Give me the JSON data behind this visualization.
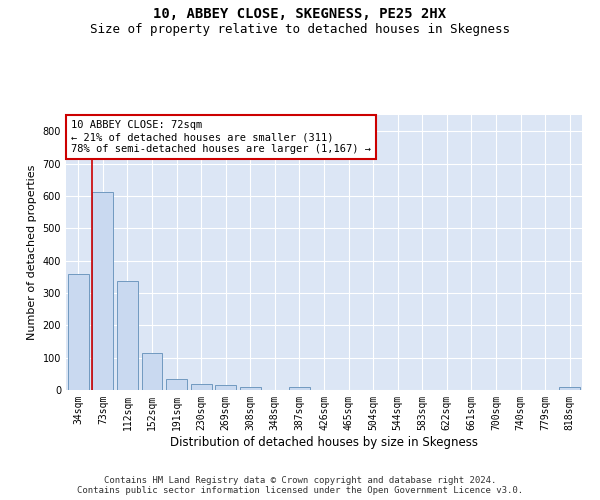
{
  "title": "10, ABBEY CLOSE, SKEGNESS, PE25 2HX",
  "subtitle": "Size of property relative to detached houses in Skegness",
  "xlabel": "Distribution of detached houses by size in Skegness",
  "ylabel": "Number of detached properties",
  "bar_labels": [
    "34sqm",
    "73sqm",
    "112sqm",
    "152sqm",
    "191sqm",
    "230sqm",
    "269sqm",
    "308sqm",
    "348sqm",
    "387sqm",
    "426sqm",
    "465sqm",
    "504sqm",
    "544sqm",
    "583sqm",
    "622sqm",
    "661sqm",
    "700sqm",
    "740sqm",
    "779sqm",
    "818sqm"
  ],
  "bar_values": [
    358,
    611,
    338,
    114,
    35,
    20,
    15,
    10,
    0,
    8,
    0,
    0,
    0,
    0,
    0,
    0,
    0,
    0,
    0,
    0,
    8
  ],
  "bar_color": "#c9d9f0",
  "bar_edge_color": "#7099c0",
  "annotation_text": "10 ABBEY CLOSE: 72sqm\n← 21% of detached houses are smaller (311)\n78% of semi-detached houses are larger (1,167) →",
  "annotation_box_color": "#ffffff",
  "annotation_box_edge_color": "#cc0000",
  "vline_color": "#cc0000",
  "ylim": [
    0,
    850
  ],
  "yticks": [
    0,
    100,
    200,
    300,
    400,
    500,
    600,
    700,
    800
  ],
  "plot_background_color": "#dce6f5",
  "footer_text": "Contains HM Land Registry data © Crown copyright and database right 2024.\nContains public sector information licensed under the Open Government Licence v3.0.",
  "title_fontsize": 10,
  "subtitle_fontsize": 9,
  "xlabel_fontsize": 8.5,
  "ylabel_fontsize": 8,
  "tick_fontsize": 7,
  "footer_fontsize": 6.5,
  "annotation_fontsize": 7.5
}
